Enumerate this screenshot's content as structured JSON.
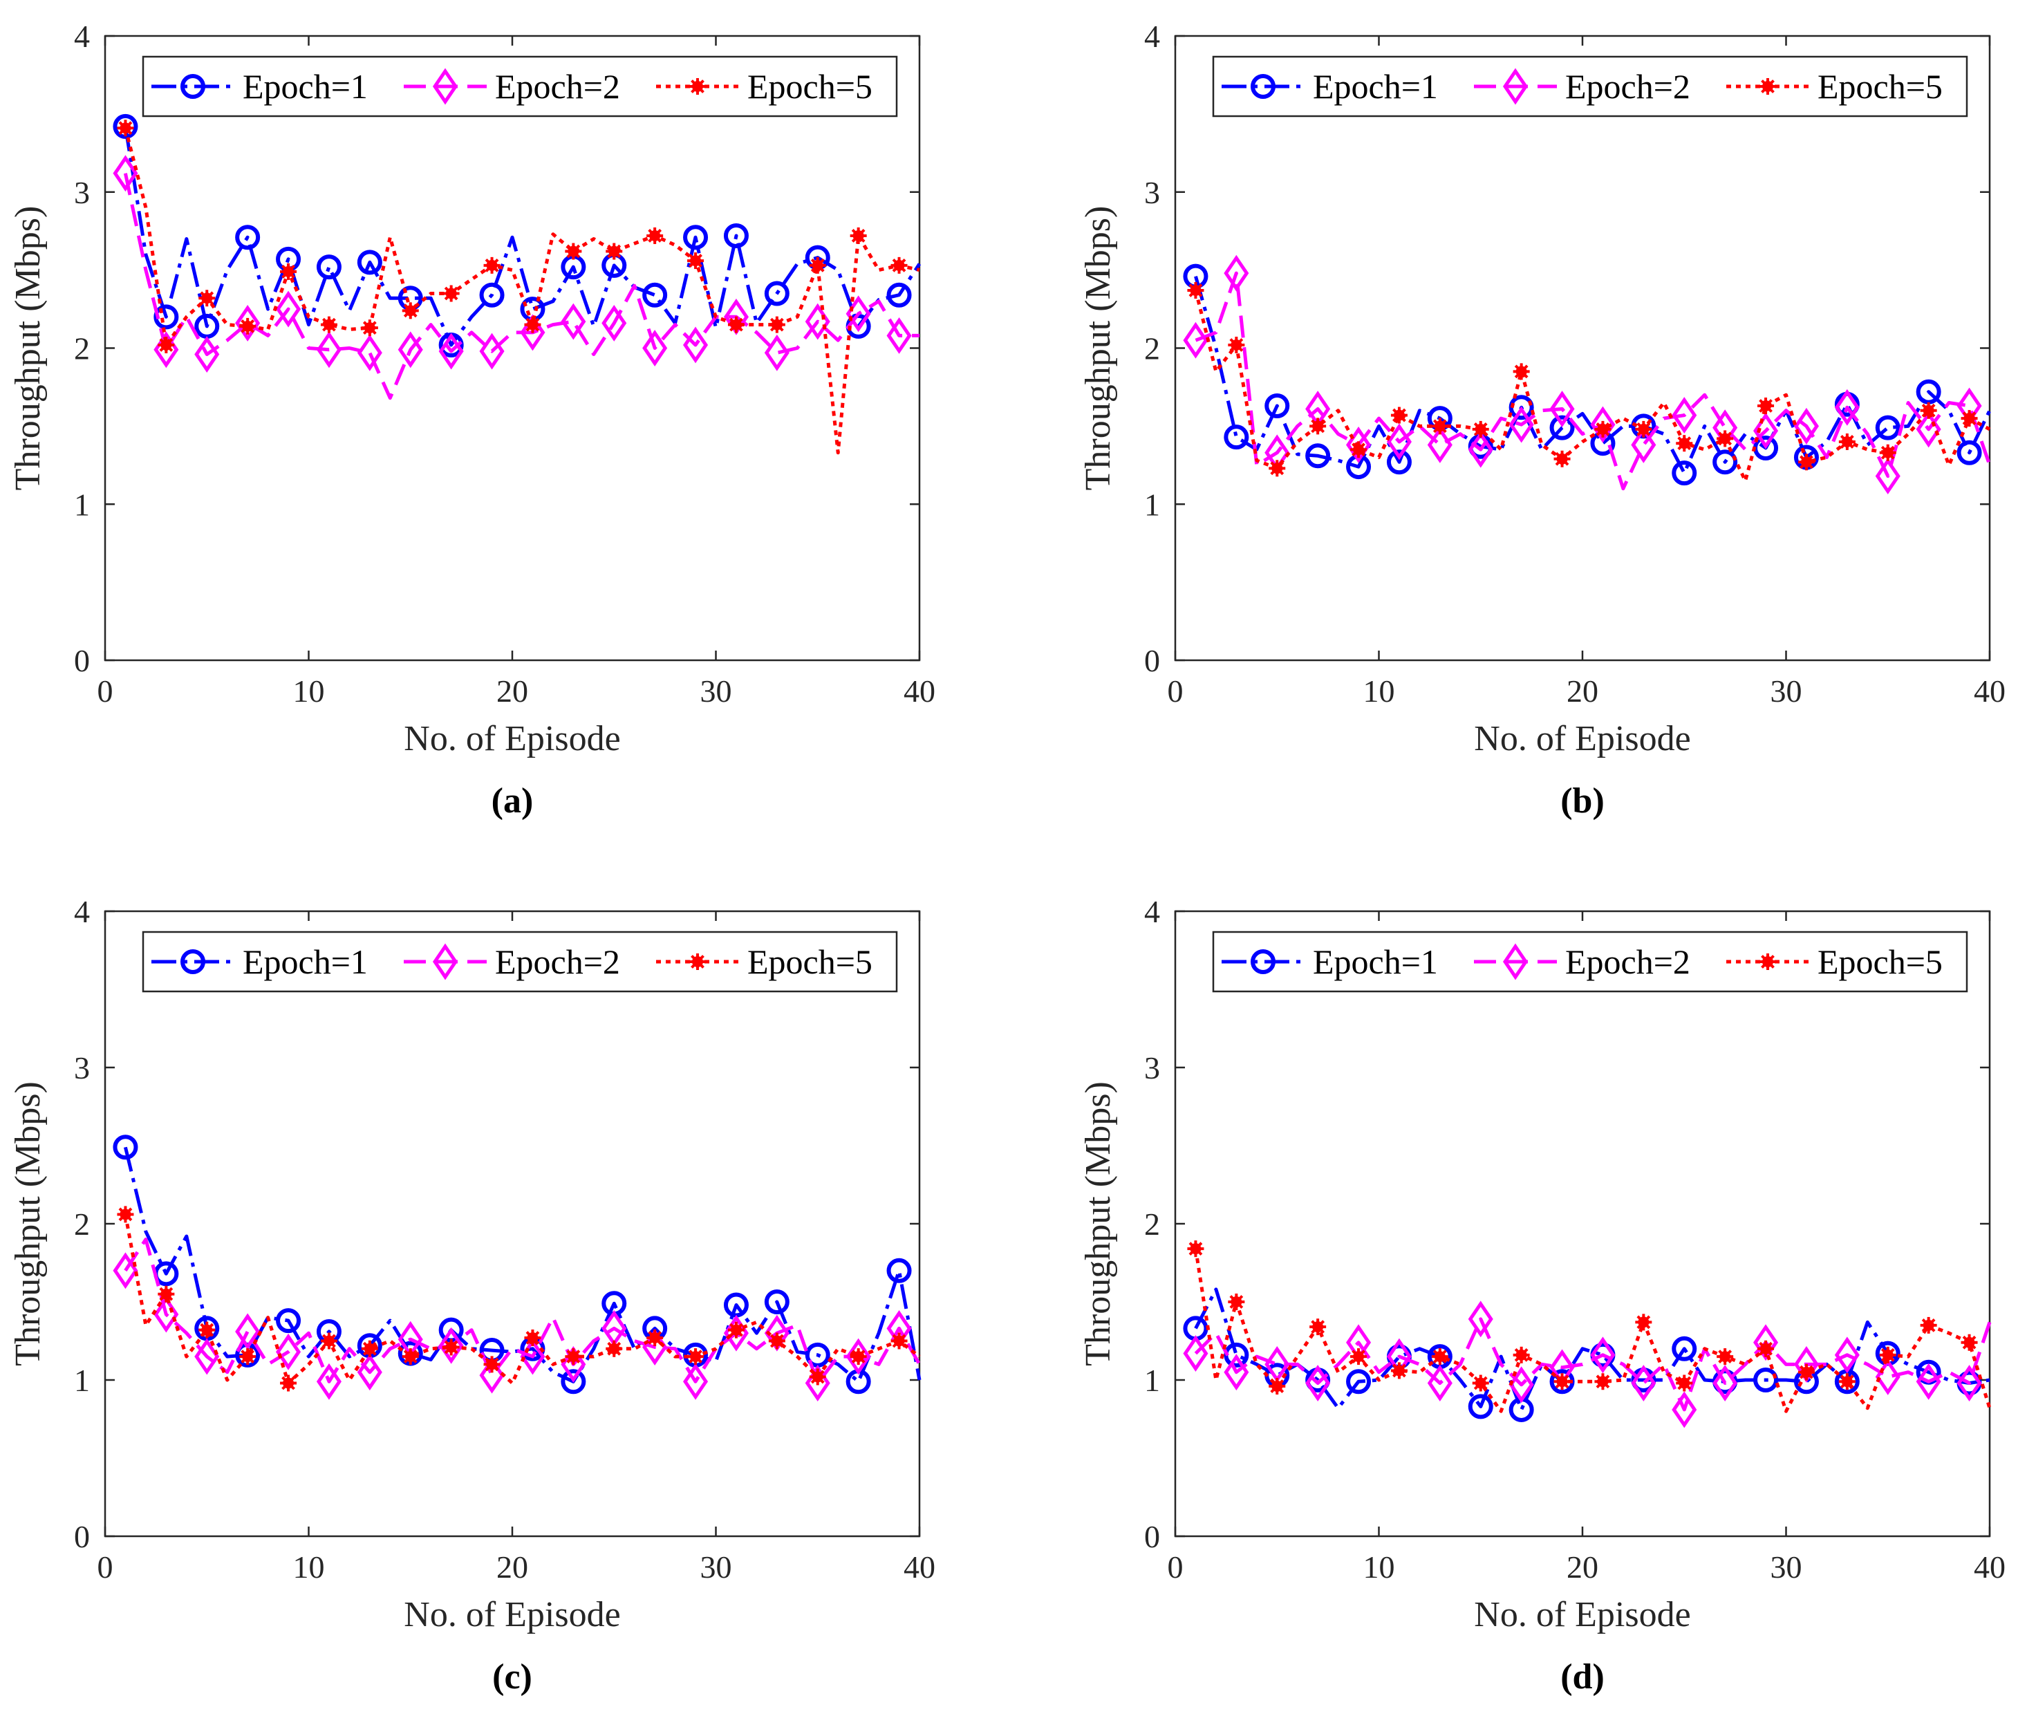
{
  "colors": {
    "epoch1": "#0000ff",
    "epoch2": "#ff00ff",
    "epoch5": "#ff0000",
    "axis": "#262626"
  },
  "chart_data": [
    {
      "type": "line",
      "caption": "(a)",
      "xlabel": "No. of Episode",
      "ylabel": "Throughput (Mbps)",
      "xlim": [
        0,
        40
      ],
      "ylim": [
        0,
        4
      ],
      "xticks": [
        "0",
        "10",
        "20",
        "30",
        "40"
      ],
      "yticks": [
        "0",
        "1",
        "2",
        "3",
        "4"
      ],
      "legend_position": "top",
      "grid": false,
      "x": [
        1,
        2,
        3,
        4,
        5,
        6,
        7,
        8,
        9,
        10,
        11,
        12,
        13,
        14,
        15,
        16,
        17,
        18,
        19,
        20,
        21,
        22,
        23,
        24,
        25,
        26,
        27,
        28,
        29,
        30,
        31,
        32,
        33,
        34,
        35,
        36,
        37,
        38,
        39,
        40
      ],
      "series": [
        {
          "name": "Epoch=1",
          "marker": "circle",
          "line": "dashdot",
          "color": "#0000ff",
          "values": [
            3.42,
            2.6,
            2.2,
            2.7,
            2.14,
            2.5,
            2.71,
            2.25,
            2.57,
            2.15,
            2.52,
            2.24,
            2.55,
            2.32,
            2.32,
            2.32,
            2.02,
            2.2,
            2.34,
            2.71,
            2.25,
            2.3,
            2.52,
            2.14,
            2.53,
            2.39,
            2.34,
            2.16,
            2.71,
            2.13,
            2.72,
            2.16,
            2.35,
            2.54,
            2.58,
            2.5,
            2.14,
            2.31,
            2.34,
            2.54
          ]
        },
        {
          "name": "Epoch=2",
          "marker": "diamond",
          "line": "dashed",
          "color": "#ff00ff",
          "values": [
            3.12,
            2.5,
            1.99,
            2.2,
            1.96,
            2.05,
            2.16,
            2.08,
            2.25,
            2.0,
            1.99,
            2.0,
            1.97,
            1.68,
            1.99,
            2.15,
            1.98,
            2.1,
            1.98,
            2.1,
            2.1,
            2.15,
            2.17,
            1.96,
            2.16,
            2.4,
            2.0,
            2.15,
            2.02,
            2.2,
            2.2,
            2.1,
            1.97,
            2.0,
            2.17,
            2.05,
            2.22,
            2.3,
            2.08,
            2.08
          ]
        },
        {
          "name": "Epoch=5",
          "marker": "star",
          "line": "dotted",
          "color": "#ff0000",
          "values": [
            3.41,
            2.9,
            2.02,
            2.2,
            2.32,
            2.15,
            2.14,
            2.12,
            2.49,
            2.2,
            2.15,
            2.12,
            2.13,
            2.71,
            2.24,
            2.35,
            2.35,
            2.44,
            2.53,
            2.5,
            2.15,
            2.73,
            2.62,
            2.7,
            2.62,
            2.67,
            2.72,
            2.66,
            2.56,
            2.2,
            2.15,
            2.15,
            2.15,
            2.2,
            2.53,
            1.33,
            2.72,
            2.5,
            2.53,
            2.5
          ]
        }
      ]
    },
    {
      "type": "line",
      "caption": "(b)",
      "xlabel": "No. of Episode",
      "ylabel": "Throughput (Mbps)",
      "xlim": [
        0,
        40
      ],
      "ylim": [
        0,
        4
      ],
      "xticks": [
        "0",
        "10",
        "20",
        "30",
        "40"
      ],
      "yticks": [
        "0",
        "1",
        "2",
        "3",
        "4"
      ],
      "legend_position": "top",
      "grid": false,
      "x": [
        1,
        2,
        3,
        4,
        5,
        6,
        7,
        8,
        9,
        10,
        11,
        12,
        13,
        14,
        15,
        16,
        17,
        18,
        19,
        20,
        21,
        22,
        23,
        24,
        25,
        26,
        27,
        28,
        29,
        30,
        31,
        32,
        33,
        34,
        35,
        36,
        37,
        38,
        39,
        40
      ],
      "series": [
        {
          "name": "Epoch=1",
          "marker": "circle",
          "line": "dashdot",
          "color": "#0000ff",
          "values": [
            2.46,
            2.0,
            1.43,
            1.35,
            1.63,
            1.32,
            1.31,
            1.28,
            1.24,
            1.5,
            1.27,
            1.6,
            1.55,
            1.45,
            1.37,
            1.35,
            1.62,
            1.35,
            1.49,
            1.58,
            1.39,
            1.5,
            1.5,
            1.45,
            1.2,
            1.5,
            1.27,
            1.45,
            1.36,
            1.6,
            1.3,
            1.4,
            1.64,
            1.38,
            1.49,
            1.5,
            1.72,
            1.6,
            1.33,
            1.6
          ]
        },
        {
          "name": "Epoch=2",
          "marker": "diamond",
          "line": "dashed",
          "color": "#ff00ff",
          "values": [
            2.05,
            2.1,
            2.48,
            1.25,
            1.33,
            1.5,
            1.61,
            1.45,
            1.38,
            1.55,
            1.4,
            1.5,
            1.38,
            1.45,
            1.35,
            1.55,
            1.51,
            1.6,
            1.61,
            1.45,
            1.51,
            1.1,
            1.38,
            1.55,
            1.57,
            1.7,
            1.49,
            1.35,
            1.47,
            1.6,
            1.5,
            1.3,
            1.62,
            1.45,
            1.18,
            1.65,
            1.48,
            1.65,
            1.63,
            1.25
          ]
        },
        {
          "name": "Epoch=5",
          "marker": "star",
          "line": "dotted",
          "color": "#ff0000",
          "values": [
            2.37,
            1.85,
            2.02,
            1.28,
            1.23,
            1.4,
            1.5,
            1.6,
            1.35,
            1.3,
            1.57,
            1.5,
            1.5,
            1.5,
            1.48,
            1.35,
            1.85,
            1.38,
            1.29,
            1.4,
            1.48,
            1.55,
            1.48,
            1.65,
            1.39,
            1.35,
            1.42,
            1.15,
            1.63,
            1.7,
            1.27,
            1.3,
            1.4,
            1.35,
            1.33,
            1.45,
            1.6,
            1.25,
            1.55,
            1.48
          ]
        }
      ]
    },
    {
      "type": "line",
      "caption": "(c)",
      "xlabel": "No. of Episode",
      "ylabel": "Throughput (Mbps)",
      "xlim": [
        0,
        40
      ],
      "ylim": [
        0,
        4
      ],
      "xticks": [
        "0",
        "10",
        "20",
        "30",
        "40"
      ],
      "yticks": [
        "0",
        "1",
        "2",
        "3",
        "4"
      ],
      "legend_position": "top",
      "grid": false,
      "x": [
        1,
        2,
        3,
        4,
        5,
        6,
        7,
        8,
        9,
        10,
        11,
        12,
        13,
        14,
        15,
        16,
        17,
        18,
        19,
        20,
        21,
        22,
        23,
        24,
        25,
        26,
        27,
        28,
        29,
        30,
        31,
        32,
        33,
        34,
        35,
        36,
        37,
        38,
        39,
        40
      ],
      "series": [
        {
          "name": "Epoch=1",
          "marker": "circle",
          "line": "dashdot",
          "color": "#0000ff",
          "values": [
            2.49,
            1.95,
            1.68,
            1.92,
            1.33,
            1.15,
            1.16,
            1.4,
            1.38,
            1.15,
            1.31,
            1.15,
            1.22,
            1.38,
            1.17,
            1.13,
            1.32,
            1.2,
            1.19,
            1.18,
            1.2,
            1.05,
            0.99,
            1.2,
            1.49,
            1.2,
            1.33,
            1.2,
            1.16,
            1.12,
            1.48,
            1.3,
            1.5,
            1.18,
            1.16,
            1.1,
            0.99,
            1.3,
            1.7,
            1.0
          ]
        },
        {
          "name": "Epoch=2",
          "marker": "diamond",
          "line": "dashed",
          "color": "#ff00ff",
          "values": [
            1.7,
            1.9,
            1.42,
            1.3,
            1.15,
            1.05,
            1.31,
            1.1,
            1.18,
            1.3,
            0.99,
            1.2,
            1.05,
            1.2,
            1.26,
            1.2,
            1.22,
            1.32,
            1.03,
            1.2,
            1.15,
            1.4,
            1.1,
            1.25,
            1.33,
            1.25,
            1.21,
            1.2,
            0.99,
            1.2,
            1.3,
            1.2,
            1.3,
            1.35,
            0.98,
            1.15,
            1.15,
            1.1,
            1.33,
            1.1
          ]
        },
        {
          "name": "Epoch=5",
          "marker": "star",
          "line": "dotted",
          "color": "#ff0000",
          "values": [
            2.06,
            1.35,
            1.55,
            1.15,
            1.32,
            1.0,
            1.15,
            1.4,
            0.98,
            1.1,
            1.25,
            1.0,
            1.2,
            1.25,
            1.15,
            1.2,
            1.21,
            1.2,
            1.1,
            0.98,
            1.27,
            1.1,
            1.15,
            1.15,
            1.2,
            1.2,
            1.27,
            1.15,
            1.15,
            1.2,
            1.32,
            1.37,
            1.25,
            1.15,
            1.02,
            1.2,
            1.15,
            1.2,
            1.25,
            1.15
          ]
        }
      ]
    },
    {
      "type": "line",
      "caption": "(d)",
      "xlabel": "No. of Episode",
      "ylabel": "Throughput (Mbps)",
      "xlim": [
        0,
        40
      ],
      "ylim": [
        0,
        4
      ],
      "xticks": [
        "0",
        "10",
        "20",
        "30",
        "40"
      ],
      "yticks": [
        "0",
        "1",
        "2",
        "3",
        "4"
      ],
      "legend_position": "top",
      "grid": false,
      "x": [
        1,
        2,
        3,
        4,
        5,
        6,
        7,
        8,
        9,
        10,
        11,
        12,
        13,
        14,
        15,
        16,
        17,
        18,
        19,
        20,
        21,
        22,
        23,
        24,
        25,
        26,
        27,
        28,
        29,
        30,
        31,
        32,
        33,
        34,
        35,
        36,
        37,
        38,
        39,
        40
      ],
      "series": [
        {
          "name": "Epoch=1",
          "marker": "circle",
          "line": "dashdot",
          "color": "#0000ff",
          "values": [
            1.33,
            1.58,
            1.16,
            1.1,
            1.03,
            1.1,
            1.0,
            0.82,
            0.99,
            1.0,
            1.15,
            1.2,
            1.15,
            1.0,
            0.83,
            1.15,
            0.81,
            1.1,
            0.99,
            1.2,
            1.16,
            1.0,
            1.0,
            1.0,
            1.2,
            1.0,
            0.99,
            1.0,
            1.0,
            1.0,
            0.99,
            1.1,
            0.99,
            1.37,
            1.17,
            1.1,
            1.05,
            1.0,
            0.98,
            1.0
          ]
        },
        {
          "name": "Epoch=2",
          "marker": "diamond",
          "line": "dashed",
          "color": "#ff00ff",
          "values": [
            1.17,
            1.3,
            1.05,
            1.15,
            1.1,
            1.1,
            0.98,
            1.1,
            1.24,
            1.05,
            1.15,
            1.1,
            0.98,
            1.1,
            1.39,
            1.1,
            0.97,
            1.1,
            1.08,
            1.1,
            1.16,
            1.1,
            0.98,
            1.1,
            0.81,
            1.2,
            0.98,
            1.1,
            1.24,
            1.1,
            1.1,
            1.1,
            1.16,
            1.1,
            1.02,
            1.05,
            0.99,
            1.05,
            0.98,
            1.37
          ]
        },
        {
          "name": "Epoch=5",
          "marker": "star",
          "line": "dotted",
          "color": "#ff0000",
          "values": [
            1.84,
            1.0,
            1.5,
            1.1,
            0.96,
            1.15,
            1.34,
            1.05,
            1.15,
            1.0,
            1.06,
            1.05,
            1.15,
            1.1,
            0.98,
            0.8,
            1.16,
            1.1,
            0.99,
            0.99,
            0.99,
            1.0,
            1.37,
            1.05,
            0.98,
            1.2,
            1.15,
            1.1,
            1.2,
            0.8,
            1.05,
            1.1,
            0.99,
            0.82,
            1.16,
            1.15,
            1.35,
            1.3,
            1.24,
            0.82
          ]
        }
      ]
    }
  ]
}
